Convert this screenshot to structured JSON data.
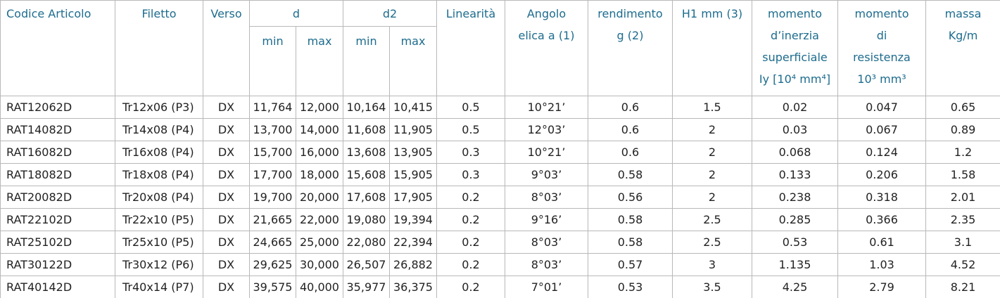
{
  "header": {
    "columns": [
      [
        "Codice Articolo"
      ],
      [
        "Filetto"
      ],
      [
        "Verso"
      ],
      [
        "d"
      ],
      [
        "d2"
      ],
      [
        "Linearità"
      ],
      [
        "Angolo",
        "elica a (1)"
      ],
      [
        "rendimento",
        "g (2)"
      ],
      [
        "H1 mm (3)"
      ],
      [
        "momento",
        "d’inerzia",
        "superficiale",
        "Iy [10⁴ mm⁴]"
      ],
      [
        "momento",
        "di",
        "resistenza",
        "10³ mm³"
      ],
      [
        "massa",
        "Kg/m"
      ]
    ],
    "sub": [
      "min",
      "max",
      "min",
      "max"
    ]
  },
  "table": {
    "rows": [
      [
        "RAT12062D",
        "Tr12x06 (P3)",
        "DX",
        "11,764",
        "12,000",
        "10,164",
        "10,415",
        "0.5",
        "10°21’",
        "0.6",
        "1.5",
        "0.02",
        "0.047",
        "0.65"
      ],
      [
        "RAT14082D",
        "Tr14x08 (P4)",
        "DX",
        "13,700",
        "14,000",
        "11,608",
        "11,905",
        "0.5",
        "12°03’",
        "0.6",
        "2",
        "0.03",
        "0.067",
        "0.89"
      ],
      [
        "RAT16082D",
        "Tr16x08 (P4)",
        "DX",
        "15,700",
        "16,000",
        "13,608",
        "13,905",
        "0.3",
        "10°21’",
        "0.6",
        "2",
        "0.068",
        "0.124",
        "1.2"
      ],
      [
        "RAT18082D",
        "Tr18x08 (P4)",
        "DX",
        "17,700",
        "18,000",
        "15,608",
        "15,905",
        "0.3",
        "9°03’",
        "0.58",
        "2",
        "0.133",
        "0.206",
        "1.58"
      ],
      [
        "RAT20082D",
        "Tr20x08 (P4)",
        "DX",
        "19,700",
        "20,000",
        "17,608",
        "17,905",
        "0.2",
        "8°03’",
        "0.56",
        "2",
        "0.238",
        "0.318",
        "2.01"
      ],
      [
        "RAT22102D",
        "Tr22x10 (P5)",
        "DX",
        "21,665",
        "22,000",
        "19,080",
        "19,394",
        "0.2",
        "9°16’",
        "0.58",
        "2.5",
        "0.285",
        "0.366",
        "2.35"
      ],
      [
        "RAT25102D",
        "Tr25x10 (P5)",
        "DX",
        "24,665",
        "25,000",
        "22,080",
        "22,394",
        "0.2",
        "8°03’",
        "0.58",
        "2.5",
        "0.53",
        "0.61",
        "3.1"
      ],
      [
        "RAT30122D",
        "Tr30x12 (P6)",
        "DX",
        "29,625",
        "30,000",
        "26,507",
        "26,882",
        "0.2",
        "8°03’",
        "0.57",
        "3",
        "1.135",
        "1.03",
        "4.52"
      ],
      [
        "RAT40142D",
        "Tr40x14 (P7)",
        "DX",
        "39,575",
        "40,000",
        "35,977",
        "36,375",
        "0.2",
        "7°01’",
        "0.53",
        "3.5",
        "4.25",
        "2.79",
        "8.21"
      ]
    ]
  }
}
